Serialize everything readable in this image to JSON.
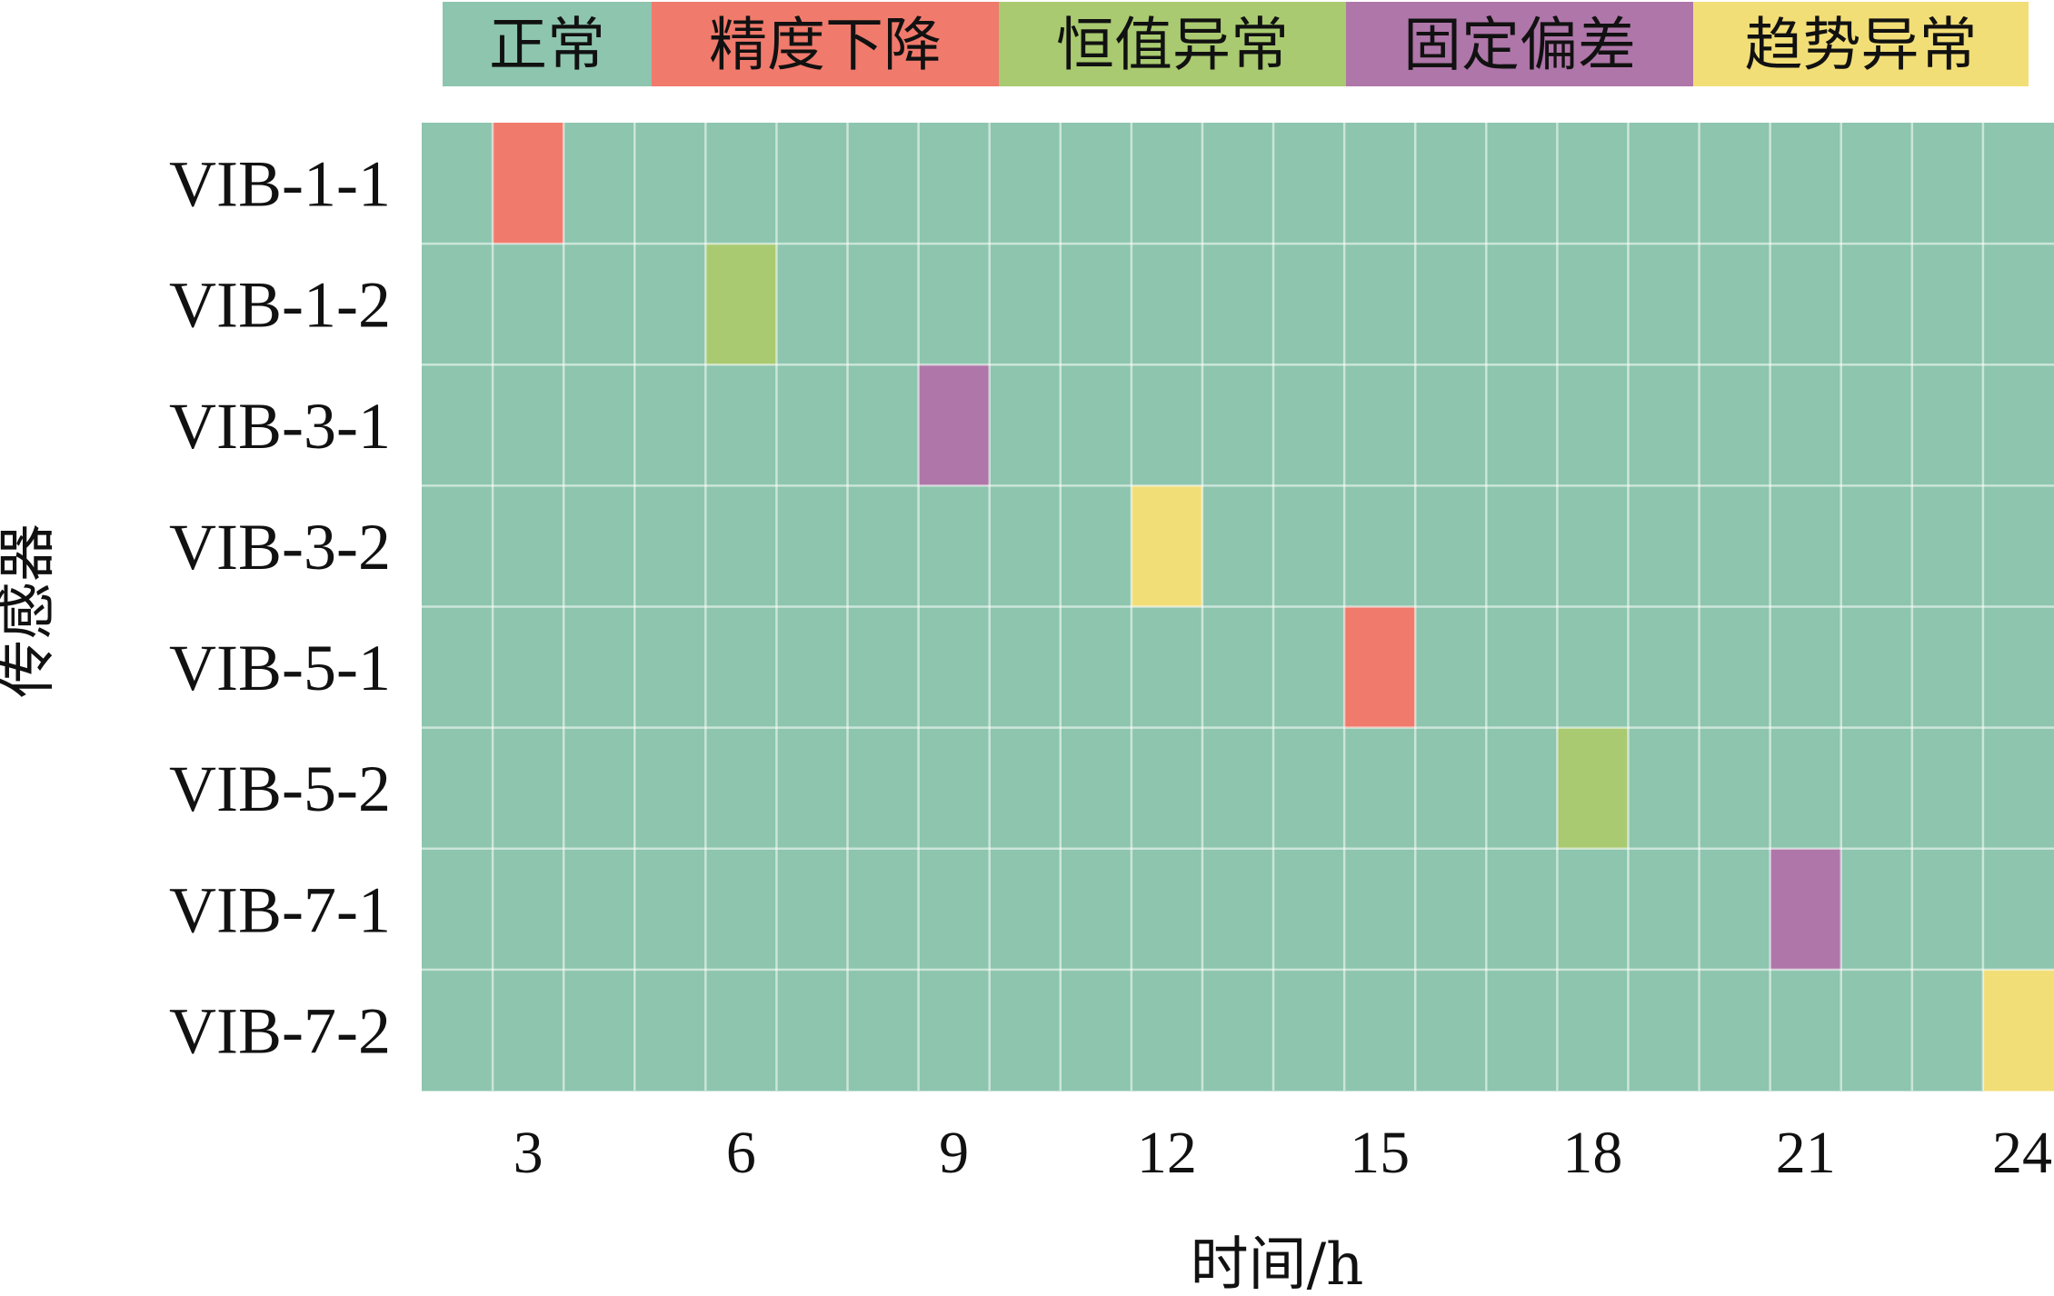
{
  "chart_data": {
    "type": "heatmap",
    "title": "",
    "xlabel": "时间/h",
    "ylabel": "传感器",
    "x_cells": 23,
    "x_ticks": [
      3,
      6,
      9,
      12,
      15,
      18,
      21,
      24
    ],
    "rows": [
      "VIB-1-1",
      "VIB-1-2",
      "VIB-3-1",
      "VIB-3-2",
      "VIB-5-1",
      "VIB-5-2",
      "VIB-7-1",
      "VIB-7-2"
    ],
    "categories": [
      {
        "name": "正常",
        "color": "#8DC5AE"
      },
      {
        "name": "精度下降",
        "color": "#F07A6C"
      },
      {
        "name": "恒值异常",
        "color": "#A9CA70"
      },
      {
        "name": "固定偏差",
        "color": "#AF76A9"
      },
      {
        "name": "趋势异常",
        "color": "#F2DE77"
      }
    ],
    "default_category": "正常",
    "anomalies": [
      {
        "sensor": "VIB-1-1",
        "hour": 3,
        "category": "精度下降"
      },
      {
        "sensor": "VIB-1-2",
        "hour": 6,
        "category": "恒值异常"
      },
      {
        "sensor": "VIB-3-1",
        "hour": 9,
        "category": "固定偏差"
      },
      {
        "sensor": "VIB-3-2",
        "hour": 12,
        "category": "趋势异常"
      },
      {
        "sensor": "VIB-5-1",
        "hour": 15,
        "category": "精度下降"
      },
      {
        "sensor": "VIB-5-2",
        "hour": 18,
        "category": "恒值异常"
      },
      {
        "sensor": "VIB-7-1",
        "hour": 21,
        "category": "固定偏差"
      },
      {
        "sensor": "VIB-7-2",
        "hour": 24,
        "category": "趋势异常"
      }
    ],
    "legend_position": "top",
    "grid": true
  }
}
